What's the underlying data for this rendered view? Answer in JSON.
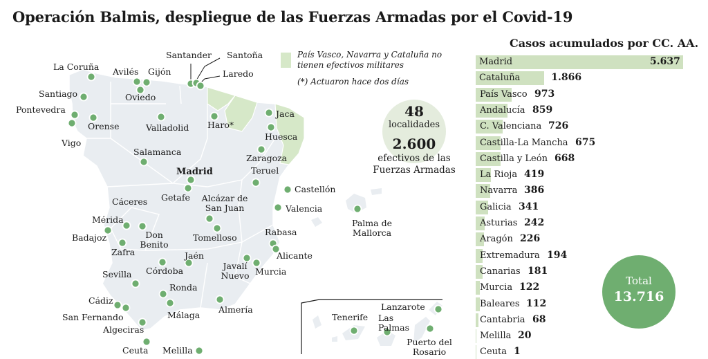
{
  "title": "Operación Balmis, despliegue de las Fuerzas Armadas por el Covid-19",
  "legend": {
    "excluded_text": "País Vasco, Navarra y Cataluña no tienen efectivos militares",
    "note": "(*) Actuaron hace dos días",
    "excluded_color": "#d6e8c8"
  },
  "stats": {
    "localities_value": "48",
    "localities_label": "localidades",
    "troops_value": "2.600",
    "troops_label": "efectivos de las Fuerzas Armadas"
  },
  "cities": {
    "la_coruna": "La Coruña",
    "aviles": "Avilés",
    "gijon": "Gijón",
    "santander": "Santander",
    "santona": "Santoña",
    "laredo": "Laredo",
    "santiago": "Santiago",
    "oviedo": "Oviedo",
    "pontevedra": "Pontevedra",
    "orense": "Orense",
    "vigo": "Vigo",
    "valladolid": "Valladolid",
    "haro": "Haro*",
    "jaca": "Jaca",
    "huesca": "Huesca",
    "zaragoza": "Zaragoza",
    "salamanca": "Salamanca",
    "madrid": "Madrid",
    "teruel": "Teruel",
    "getafe": "Getafe",
    "castellon": "Castellón",
    "alcazar": "Alcázar de San Juan",
    "caceres": "Cáceres",
    "valencia": "Valencia",
    "palma": "Palma de Mallorca",
    "merida": "Mérida",
    "badajoz": "Badajoz",
    "don_benito": "Don Benito",
    "tomelloso": "Tomelloso",
    "rabasa": "Rabasa",
    "zafra": "Zafra",
    "alicante": "Alicante",
    "jaen": "Jaén",
    "javali": "Javalí Nuevo",
    "sevilla": "Sevilla",
    "cordoba": "Córdoba",
    "murcia": "Murcia",
    "ronda": "Ronda",
    "cadiz": "Cádiz",
    "almeria": "Almería",
    "san_fernando": "San Fernando",
    "malaga": "Málaga",
    "algeciras": "Algeciras",
    "ceuta": "Ceuta",
    "melilla": "Melilla",
    "lanzarote": "Lanzarote",
    "tenerife": "Tenerife",
    "las_palmas": "Las Palmas",
    "puerto_rosario": "Puerto del Rosario"
  },
  "chart_data": {
    "type": "bar",
    "title": "Casos acumulados por CC. AA.",
    "categories": [
      "Madrid",
      "Cataluña",
      "País Vasco",
      "Andalucía",
      "C. Valenciana",
      "Castilla-La Mancha",
      "Castilla y León",
      "La Rioja",
      "Navarra",
      "Galicia",
      "Asturias",
      "Aragón",
      "Extremadura",
      "Canarias",
      "Murcia",
      "Baleares",
      "Cantabria",
      "Melilla",
      "Ceuta"
    ],
    "values": [
      5637,
      1866,
      973,
      859,
      726,
      675,
      668,
      419,
      386,
      341,
      242,
      226,
      194,
      181,
      122,
      112,
      68,
      20,
      1
    ],
    "value_labels": [
      "5.637",
      "1.866",
      "973",
      "859",
      "726",
      "675",
      "668",
      "419",
      "386",
      "341",
      "242",
      "226",
      "194",
      "181",
      "122",
      "112",
      "68",
      "20",
      "1"
    ],
    "bar_color": "#cfe1c0",
    "total_label": "Total",
    "total_value": "13.716",
    "total_color": "#6fae70"
  }
}
